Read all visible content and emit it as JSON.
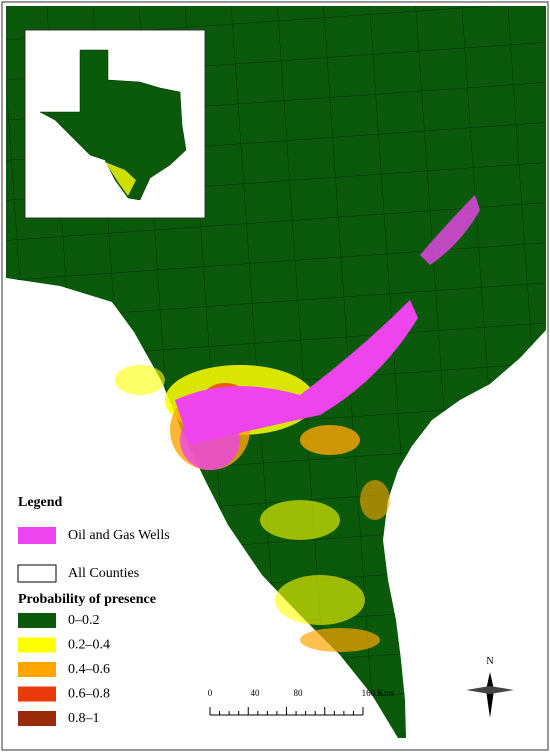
{
  "legend": {
    "title": "Legend",
    "wells": {
      "label": "Oil and Gas Wells",
      "color": "#ee44ee"
    },
    "counties": {
      "label": "All Counties",
      "color": "#ffffff"
    },
    "probability_title": "Probability of presence",
    "classes": [
      {
        "label": "0–0.2",
        "color": "#0b5a0b"
      },
      {
        "label": "0.2–0.4",
        "color": "#ffff00"
      },
      {
        "label": "0.4–0.6",
        "color": "#ffa500"
      },
      {
        "label": "0.6–0.8",
        "color": "#e83a0a"
      },
      {
        "label": "0.8–1",
        "color": "#9a2a08"
      }
    ]
  },
  "scale_bar": {
    "labels": [
      "0",
      "40",
      "80",
      "160 Kms"
    ]
  },
  "north_arrow": "N"
}
